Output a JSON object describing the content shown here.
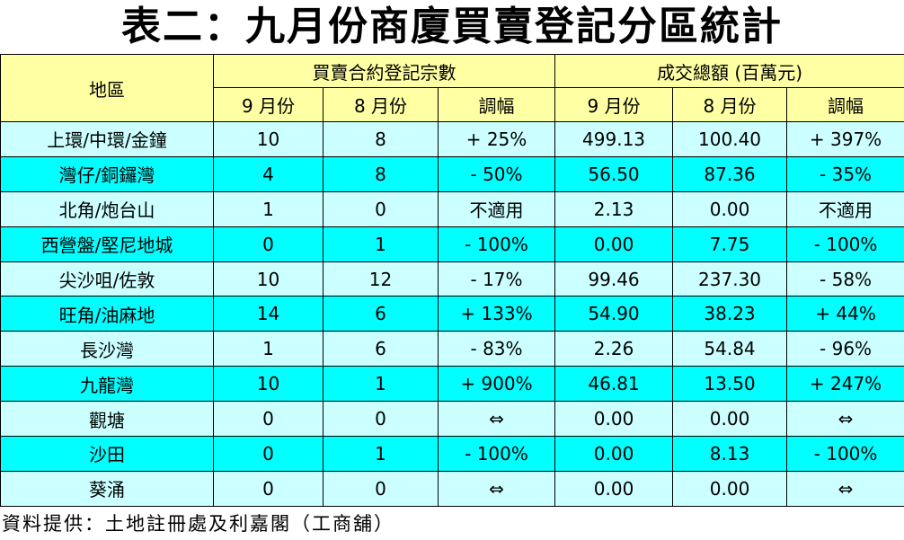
{
  "title": "表二：九月份商廈買賣登記分區統計",
  "header": {
    "district": "地區",
    "group_count": "買賣合約登記宗數",
    "group_amount": "成交總額 (百萬元)",
    "sub": [
      "9 月份",
      "8 月份",
      "調幅",
      "9 月份",
      "8 月份",
      "調幅"
    ]
  },
  "rows": [
    {
      "district": "上環/中環/金鐘",
      "c9": "10",
      "c8": "8",
      "cchg": "+ 25%",
      "a9": "499.13",
      "a8": "100.40",
      "achg": "+ 397%",
      "shade": "light"
    },
    {
      "district": "灣仔/銅鑼灣",
      "c9": "4",
      "c8": "8",
      "cchg": "- 50%",
      "a9": "56.50",
      "a8": "87.36",
      "achg": "- 35%",
      "shade": "cyan"
    },
    {
      "district": "北角/炮台山",
      "c9": "1",
      "c8": "0",
      "cchg": "不適用",
      "a9": "2.13",
      "a8": "0.00",
      "achg": "不適用",
      "shade": "light"
    },
    {
      "district": "西營盤/堅尼地城",
      "c9": "0",
      "c8": "1",
      "cchg": "- 100%",
      "a9": "0.00",
      "a8": "7.75",
      "achg": "- 100%",
      "shade": "cyan"
    },
    {
      "district": "尖沙咀/佐敦",
      "c9": "10",
      "c8": "12",
      "cchg": "- 17%",
      "a9": "99.46",
      "a8": "237.30",
      "achg": "- 58%",
      "shade": "light"
    },
    {
      "district": "旺角/油麻地",
      "c9": "14",
      "c8": "6",
      "cchg": "+ 133%",
      "a9": "54.90",
      "a8": "38.23",
      "achg": "+ 44%",
      "shade": "cyan"
    },
    {
      "district": "長沙灣",
      "c9": "1",
      "c8": "6",
      "cchg": "- 83%",
      "a9": "2.26",
      "a8": "54.84",
      "achg": "- 96%",
      "shade": "light"
    },
    {
      "district": "九龍灣",
      "c9": "10",
      "c8": "1",
      "cchg": "+ 900%",
      "a9": "46.81",
      "a8": "13.50",
      "achg": "+ 247%",
      "shade": "cyan"
    },
    {
      "district": "觀塘",
      "c9": "0",
      "c8": "0",
      "cchg": "⇔",
      "a9": "0.00",
      "a8": "0.00",
      "achg": "⇔",
      "shade": "light"
    },
    {
      "district": "沙田",
      "c9": "0",
      "c8": "1",
      "cchg": "- 100%",
      "a9": "0.00",
      "a8": "8.13",
      "achg": "- 100%",
      "shade": "cyan"
    },
    {
      "district": "葵涌",
      "c9": "0",
      "c8": "0",
      "cchg": "⇔",
      "a9": "0.00",
      "a8": "0.00",
      "achg": "⇔",
      "shade": "light"
    }
  ],
  "source": "資料提供：土地註冊處及利嘉閣（工商舖）"
}
